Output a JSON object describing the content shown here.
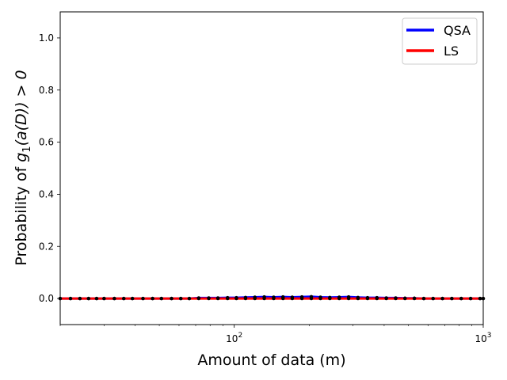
{
  "chart_data": {
    "type": "line",
    "title": "",
    "xlabel": "Amount of data (m)",
    "ylabel_parts": {
      "prefix": "Probability of ",
      "g": "g",
      "sub": "1",
      "rest": "(a(D)) > 0"
    },
    "xscale": "log",
    "xlim": [
      20,
      1000
    ],
    "ylim": [
      -0.1,
      1.1
    ],
    "grid": false,
    "legend_position": "top-right",
    "x_ticks": [
      {
        "value": 100,
        "base": "10",
        "exp": "2"
      },
      {
        "value": 1000,
        "base": "10",
        "exp": "3"
      }
    ],
    "y_ticks": [
      {
        "value": 0.0,
        "label": "0.0"
      },
      {
        "value": 0.2,
        "label": "0.2"
      },
      {
        "value": 0.4,
        "label": "0.4"
      },
      {
        "value": 0.6,
        "label": "0.6"
      },
      {
        "value": 0.8,
        "label": "0.8"
      },
      {
        "value": 1.0,
        "label": "1.0"
      }
    ],
    "series": [
      {
        "name": "QSA",
        "color": "#0000ff",
        "marker": "circle",
        "marker_color": "#000000",
        "x": [
          20,
          22,
          24,
          26,
          28,
          30,
          33,
          36,
          39,
          43,
          47,
          51,
          56,
          61,
          66,
          72,
          79,
          86,
          94,
          102,
          111,
          121,
          132,
          144,
          157,
          171,
          187,
          204,
          222,
          242,
          264,
          288,
          314,
          343,
          374,
          408,
          445,
          485,
          529,
          577,
          629,
          686,
          748,
          816,
          890,
          971,
          1000
        ],
        "values": [
          0,
          0,
          0,
          0,
          0,
          0,
          0,
          0,
          0,
          0,
          0,
          0,
          0,
          0,
          0,
          0.002,
          0.002,
          0.002,
          0.003,
          0.003,
          0.004,
          0.005,
          0.006,
          0.005,
          0.006,
          0.005,
          0.006,
          0.007,
          0.005,
          0.004,
          0.005,
          0.006,
          0.004,
          0.003,
          0.003,
          0.002,
          0.002,
          0.001,
          0.001,
          0,
          0,
          0,
          0,
          0,
          0,
          0,
          0
        ]
      },
      {
        "name": "LS",
        "color": "#ff0000",
        "marker": "circle",
        "marker_color": "#000000",
        "x": [
          20,
          22,
          24,
          26,
          28,
          30,
          33,
          36,
          39,
          43,
          47,
          51,
          56,
          61,
          66,
          72,
          79,
          86,
          94,
          102,
          111,
          121,
          132,
          144,
          157,
          171,
          187,
          204,
          222,
          242,
          264,
          288,
          314,
          343,
          374,
          408,
          445,
          485,
          529,
          577,
          629,
          686,
          748,
          816,
          890,
          971,
          1000
        ],
        "values": [
          0,
          0,
          0,
          0,
          0,
          0,
          0,
          0,
          0,
          0,
          0,
          0,
          0,
          0,
          0,
          0,
          0,
          0,
          0,
          0,
          0,
          0,
          0,
          0,
          0,
          0,
          0,
          0,
          0,
          0,
          0,
          0,
          0,
          0,
          0,
          0,
          0,
          0,
          0,
          0,
          0,
          0,
          0,
          0,
          0,
          0,
          0
        ]
      }
    ]
  }
}
